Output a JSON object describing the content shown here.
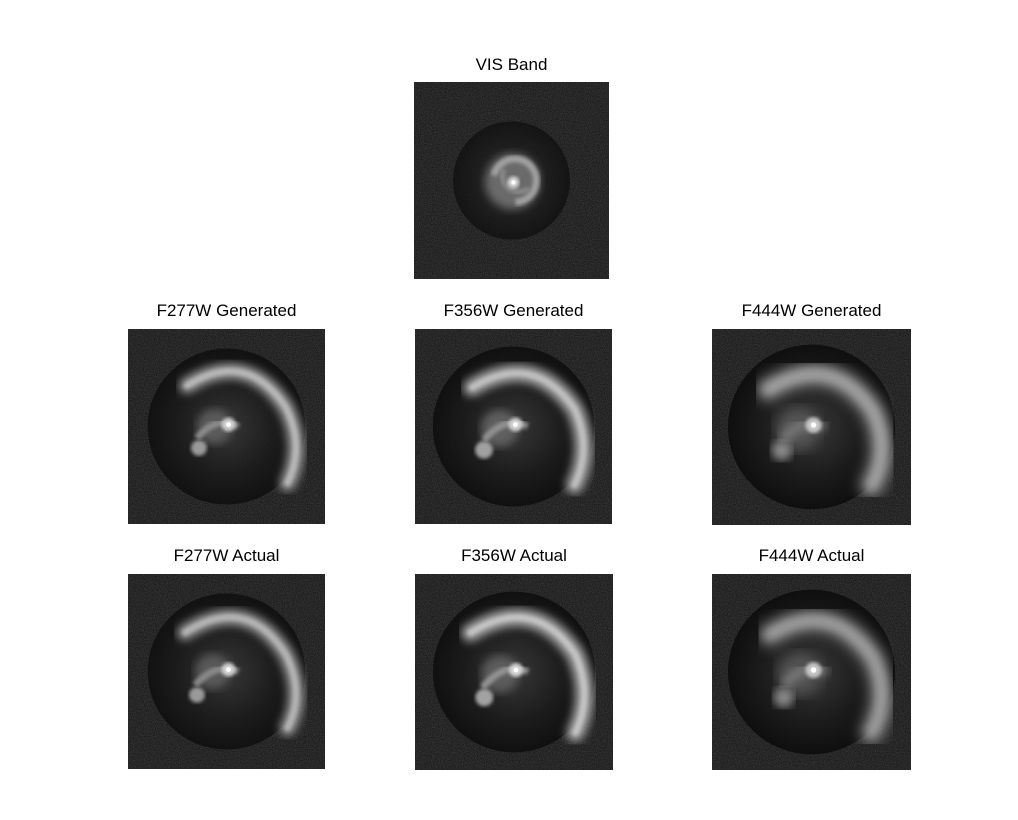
{
  "figure": {
    "panels": [
      {
        "id": "vis",
        "title": "VIS Band"
      },
      {
        "id": "f277-gen",
        "title": "F277W Generated"
      },
      {
        "id": "f356-gen",
        "title": "F356W Generated"
      },
      {
        "id": "f444-gen",
        "title": "F444W Generated"
      },
      {
        "id": "f277-act",
        "title": "F277W Actual"
      },
      {
        "id": "f356-act",
        "title": "F356W Actual"
      },
      {
        "id": "f444-act",
        "title": "F444W Actual"
      }
    ]
  },
  "colors": {
    "background": "#ffffff",
    "image_background": "#0c0c0c",
    "galaxy_glow": "#bdbdbd",
    "core": "#ffffff"
  }
}
